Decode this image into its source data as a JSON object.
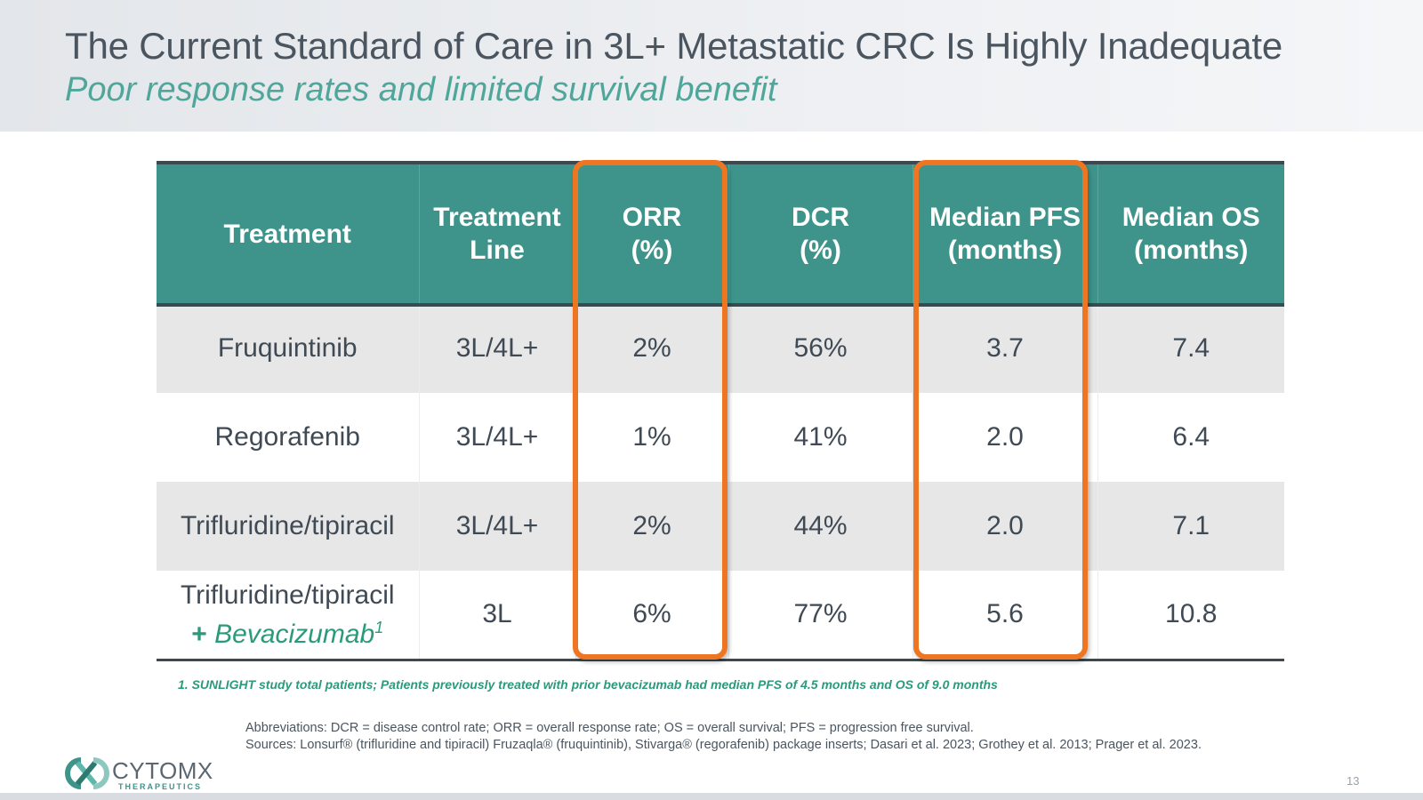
{
  "header": {
    "title": "The Current Standard of Care in 3L+ Metastatic CRC Is Highly Inadequate",
    "subtitle": "Poor response rates and limited survival benefit"
  },
  "table": {
    "columns": [
      {
        "line1": "Treatment",
        "line2": ""
      },
      {
        "line1": "Treatment",
        "line2": "Line"
      },
      {
        "line1": "ORR",
        "line2": "(%)"
      },
      {
        "line1": "DCR",
        "line2": "(%)"
      },
      {
        "line1": "Median PFS",
        "line2": "(months)"
      },
      {
        "line1": "Median OS",
        "line2": "(months)"
      }
    ],
    "rows": [
      {
        "treatment": "Fruquintinib",
        "treatment_extra": "",
        "line": "3L/4L+",
        "orr": "2%",
        "dcr": "56%",
        "pfs": "3.7",
        "os": "7.4"
      },
      {
        "treatment": "Regorafenib",
        "treatment_extra": "",
        "line": "3L/4L+",
        "orr": "1%",
        "dcr": "41%",
        "pfs": "2.0",
        "os": "6.4"
      },
      {
        "treatment": "Trifluridine/tipiracil",
        "treatment_extra": "",
        "line": "3L/4L+",
        "orr": "2%",
        "dcr": "44%",
        "pfs": "2.0",
        "os": "7.1"
      },
      {
        "treatment": "Trifluridine/tipiracil",
        "treatment_extra_plus": "+",
        "treatment_extra": "Bevacizumab",
        "treatment_extra_sup": "1",
        "line": "3L",
        "orr": "6%",
        "dcr": "77%",
        "pfs": "5.6",
        "os": "10.8"
      }
    ],
    "highlight_color": "#ee7622",
    "header_color": "#3e948a"
  },
  "footnote": "1. SUNLIGHT study total patients; Patients previously treated with prior bevacizumab had median PFS of 4.5 months and OS of 9.0 months",
  "abbreviations": "Abbreviations: DCR = disease control rate; ORR = overall response rate; OS = overall survival; PFS = progression free survival.",
  "sources": "Sources: Lonsurf® (trifluridine and tipiracil) Fruzaqla® (fruquintinib), Stivarga® (regorafenib) package inserts; Dasari et al. 2023; Grothey et al. 2013; Prager et al. 2023.",
  "logo": {
    "name": "CYTOMX",
    "sub": "THERAPEUTICS",
    "icon": "cytomx-logo-icon"
  },
  "page_number": "13"
}
